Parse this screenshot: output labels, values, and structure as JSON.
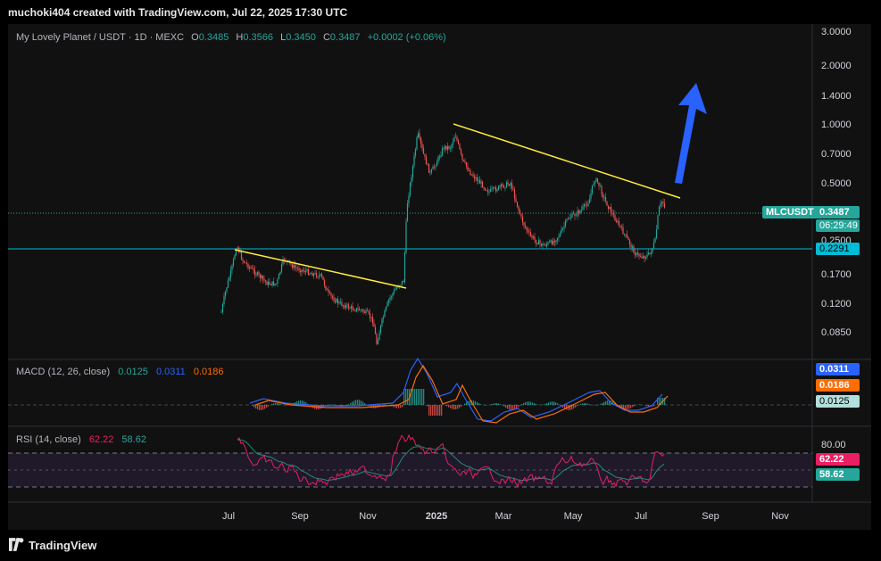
{
  "header": {
    "credit": "muchoki404 created with TradingView.com, Jul 22, 2025 17:30 UTC"
  },
  "symbol": {
    "title": "My Lovely Planet / USDT · 1D · MEXC",
    "open_label": "O",
    "open": "0.3485",
    "high_label": "H",
    "high": "0.3566",
    "low_label": "L",
    "low": "0.3450",
    "close_label": "C",
    "close": "0.3487",
    "change": "+0.0002 (+0.06%)"
  },
  "price_axis": [
    "3.0000",
    "2.0000",
    "1.4000",
    "1.0000",
    "0.7000",
    "0.5000",
    "0.2500",
    "0.1700",
    "0.1200",
    "0.0850"
  ],
  "price_tags": {
    "ticker": "MLCUSDT",
    "last": "0.3487",
    "countdown": "06:29:49",
    "support": "0.2291"
  },
  "macd": {
    "label": "MACD (12, 26, close)",
    "hist": "0.0125",
    "macd": "0.0311",
    "signal": "0.0186"
  },
  "rsi": {
    "label": "RSI (14, close)",
    "rsi": "62.22",
    "ma": "58.62",
    "level": "80.00"
  },
  "time_axis": [
    "Jul",
    "Sep",
    "Nov",
    "2025",
    "Mar",
    "May",
    "Jul",
    "Sep",
    "Nov"
  ],
  "footer": {
    "brand": "TradingView"
  },
  "colors": {
    "up": "#26a69a",
    "down": "#ef5350",
    "trendline": "#ffeb3b",
    "support": "#00bcd4",
    "macd": "#2962ff",
    "signal": "#ff6d00",
    "rsi": "#e91e63",
    "rsi_ma": "#26a69a",
    "arrow": "#2962ff"
  },
  "chart_data": {
    "type": "candlestick",
    "interval": "1D",
    "y_scale": "log",
    "ylim": [
      0.07,
      3.3
    ],
    "x": [
      "2024-07",
      "2024-08",
      "2024-09",
      "2024-10",
      "2024-11",
      "2024-12",
      "2025-01",
      "2025-02",
      "2025-03",
      "2025-04",
      "2025-05",
      "2025-06",
      "2025-07"
    ],
    "close_approx": [
      0.2,
      0.17,
      0.16,
      0.11,
      0.14,
      0.75,
      0.7,
      0.45,
      0.28,
      0.25,
      0.55,
      0.25,
      0.3487
    ],
    "support_level": 0.2291,
    "annotations": [
      "descending trendline Jul-Nov 2024",
      "descending trendline Jan-Jul 2025",
      "upward breakout arrow"
    ]
  }
}
